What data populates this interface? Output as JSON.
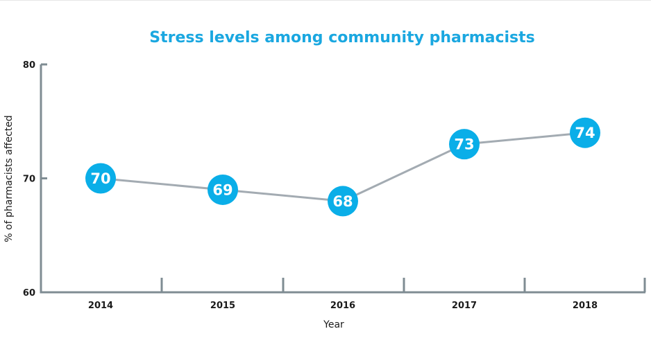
{
  "chart_data": {
    "type": "line",
    "title": "Stress levels among community pharmacists",
    "xlabel": "Year",
    "ylabel": "% of pharmacists affected",
    "categories": [
      "2014",
      "2015",
      "2016",
      "2017",
      "2018"
    ],
    "series": [
      {
        "values": [
          70,
          69,
          68,
          73,
          74
        ]
      }
    ],
    "ylim": [
      60,
      80
    ],
    "yticks": [
      60,
      70,
      80
    ],
    "grid": false,
    "data_labels": true,
    "colors": {
      "title": "#1aa7e0",
      "marker": "#0aaee8",
      "line": "#a3abb2",
      "axis": "#7f8c93"
    }
  }
}
